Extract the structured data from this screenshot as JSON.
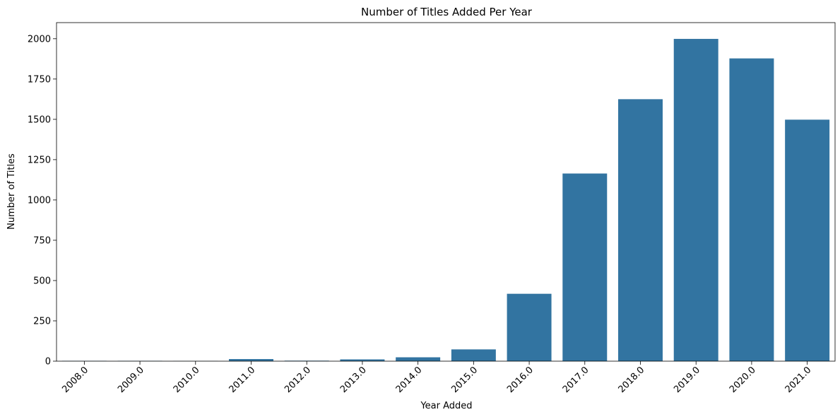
{
  "chart_data": {
    "type": "bar",
    "title": "Number of Titles Added Per Year",
    "xlabel": "Year Added",
    "ylabel": "Number of Titles",
    "categories": [
      "2008.0",
      "2009.0",
      "2010.0",
      "2011.0",
      "2012.0",
      "2013.0",
      "2014.0",
      "2015.0",
      "2016.0",
      "2017.0",
      "2018.0",
      "2019.0",
      "2020.0",
      "2021.0"
    ],
    "values": [
      2,
      2,
      1,
      13,
      3,
      11,
      24,
      73,
      418,
      1164,
      1625,
      1999,
      1878,
      1498
    ],
    "ylim": [
      0,
      2100
    ],
    "yticks": [
      0,
      250,
      500,
      750,
      1000,
      1250,
      1500,
      1750,
      2000
    ],
    "bar_color": "#3274a1",
    "grid": false,
    "legend": "none"
  }
}
